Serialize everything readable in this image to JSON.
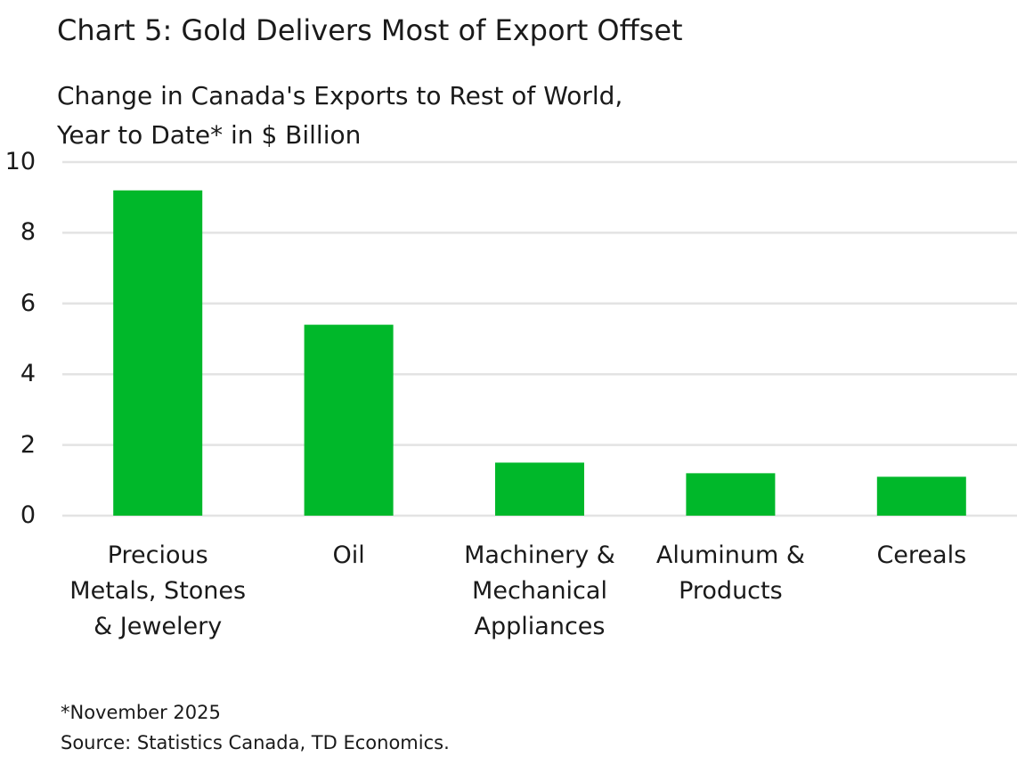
{
  "chart_data": {
    "type": "bar",
    "title": "Chart 5: Gold Delivers Most of Export Offset",
    "subtitle": [
      "Change in Canada's Exports to Rest of World,",
      "Year to Date* in $ Billion"
    ],
    "categories": [
      "Precious Metals, Stones & Jewelery",
      "Oil",
      "Machinery & Mechanical Appliances",
      "Aluminum & Products",
      "Cereals"
    ],
    "values": [
      9.2,
      5.4,
      1.5,
      1.2,
      1.1
    ],
    "color": "#00b82a",
    "ylim": [
      0,
      10
    ],
    "yticks": [
      0,
      2,
      4,
      6,
      8,
      10
    ],
    "grid": true,
    "footnotes": [
      "*November 2025",
      "Source: Statistics Canada, TD Economics."
    ]
  }
}
